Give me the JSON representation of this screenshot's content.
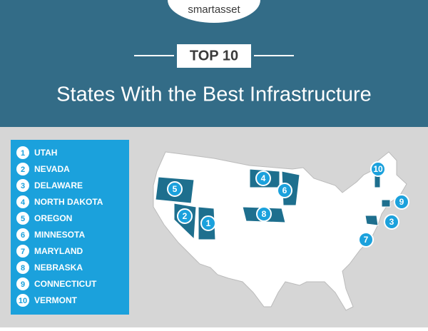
{
  "header": {
    "brand": "smartasset",
    "badge": "TOP 10",
    "title": "States With the Best Infrastructure"
  },
  "list": [
    {
      "rank": 1,
      "state": "UTAH"
    },
    {
      "rank": 2,
      "state": "NEVADA"
    },
    {
      "rank": 3,
      "state": "DELAWARE"
    },
    {
      "rank": 4,
      "state": "NORTH DAKOTA"
    },
    {
      "rank": 5,
      "state": "OREGON"
    },
    {
      "rank": 6,
      "state": "MINNESOTA"
    },
    {
      "rank": 7,
      "state": "MARYLAND"
    },
    {
      "rank": 8,
      "state": "NEBRASKA"
    },
    {
      "rank": 9,
      "state": "CONNECTICUT"
    },
    {
      "rank": 10,
      "state": "VERMONT"
    }
  ]
}
